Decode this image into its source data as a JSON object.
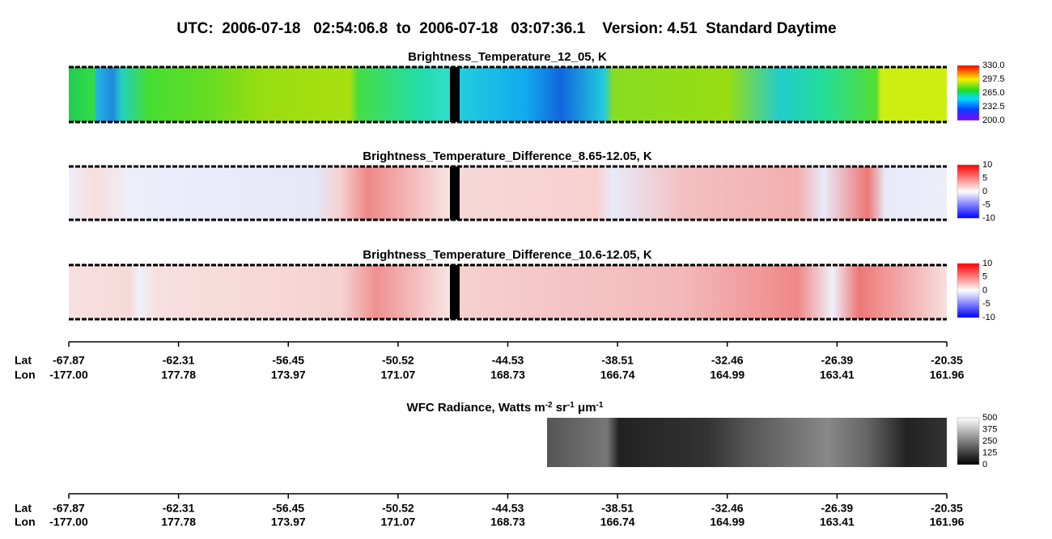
{
  "title": "UTC:  2006-07-18   02:54:06.8  to  2006-07-18   03:07:36.1    Version: 4.51  Standard Daytime",
  "panels": [
    {
      "title": "Brightness_Temperature_12_05, K",
      "colorbar": [
        "330.0",
        "297.5",
        "265.0",
        "232.5",
        "200.0"
      ]
    },
    {
      "title": "Brightness_Temperature_Difference_8.65-12.05, K",
      "colorbar": [
        "10",
        "5",
        "0",
        "-5",
        "-10"
      ]
    },
    {
      "title": "Brightness_Temperature_Difference_10.6-12.05, K",
      "colorbar": [
        "10",
        "5",
        "0",
        "-5",
        "-10"
      ]
    }
  ],
  "wfc": {
    "title_parts": [
      "WFC Radiance, Watts m",
      "-2",
      " sr",
      "-1",
      " μm",
      "-1"
    ],
    "colorbar": [
      "500",
      "375",
      "250",
      "125",
      "0"
    ]
  },
  "axis": {
    "lat_label": "Lat",
    "lon_label": "Lon",
    "lat": [
      "-67.87",
      "-62.31",
      "-56.45",
      "-50.52",
      "-44.53",
      "-38.51",
      "-32.46",
      "-26.39",
      "-20.35"
    ],
    "lon": [
      "-177.00",
      "177.78",
      "173.97",
      "171.07",
      "168.73",
      "166.74",
      "164.99",
      "163.41",
      "161.96"
    ]
  }
}
